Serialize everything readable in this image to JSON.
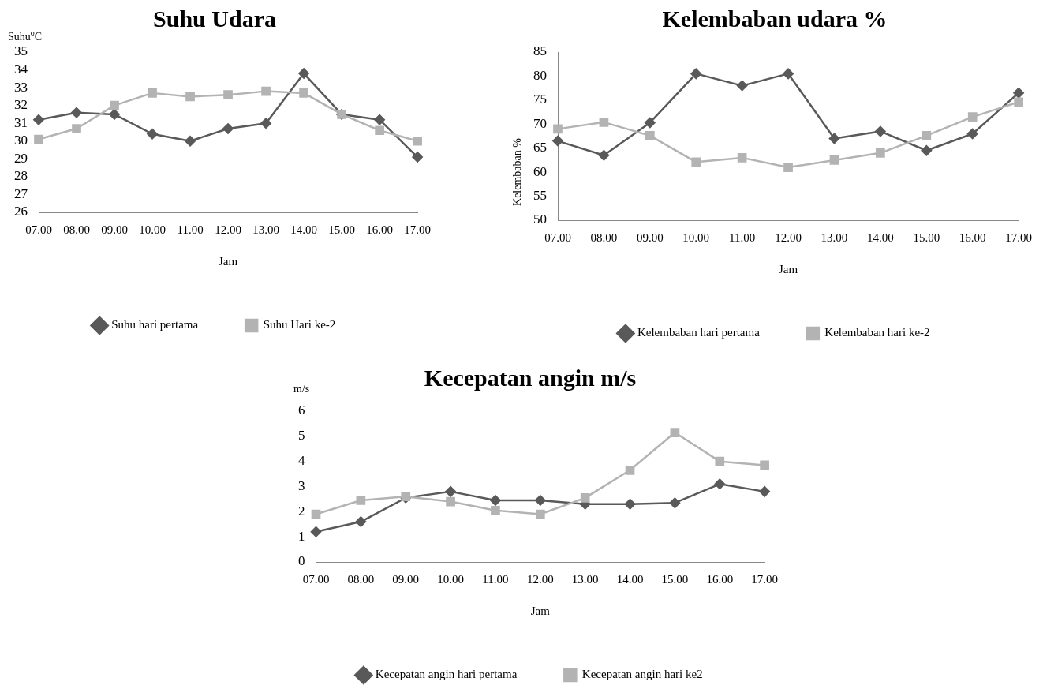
{
  "chart_data": [
    {
      "type": "line",
      "title": "Suhu Udara",
      "xlabel": "Jam",
      "ylabel": "Suhu$^{o}$C",
      "categories": [
        "07.00",
        "08.00",
        "09.00",
        "10.00",
        "11.00",
        "12.00",
        "13.00",
        "14.00",
        "15.00",
        "16.00",
        "17.00"
      ],
      "series": [
        {
          "name": "Suhu hari pertama",
          "color": "#595959",
          "marker": "diamond",
          "values": [
            31.2,
            31.6,
            31.5,
            30.4,
            30.0,
            30.7,
            31.0,
            33.8,
            31.5,
            31.2,
            29.1
          ]
        },
        {
          "name": "Suhu Hari ke-2",
          "color": "#b3b3b3",
          "marker": "square",
          "values": [
            30.1,
            30.7,
            32.0,
            32.7,
            32.5,
            32.6,
            32.8,
            32.7,
            31.5,
            30.6,
            30.0
          ]
        }
      ],
      "ylim": [
        26,
        35
      ],
      "yticks": [
        26,
        27,
        28,
        29,
        30,
        31,
        32,
        33,
        34,
        35
      ],
      "grid": false,
      "legend": "bottom"
    },
    {
      "type": "line",
      "title": "Kelembaban udara %",
      "xlabel": "Jam",
      "ylabel": "Kelembaban %",
      "categories": [
        "07.00",
        "08.00",
        "09.00",
        "10.00",
        "11.00",
        "12.00",
        "13.00",
        "14.00",
        "15.00",
        "16.00",
        "17.00"
      ],
      "series": [
        {
          "name": "Kelembaban hari pertama",
          "color": "#595959",
          "marker": "diamond",
          "values": [
            66.5,
            63.5,
            70.3,
            80.5,
            78,
            80.5,
            67,
            68.5,
            64.5,
            68,
            76.5
          ]
        },
        {
          "name": "Kelembaban hari ke-2",
          "color": "#b3b3b3",
          "marker": "square",
          "values": [
            69,
            70.4,
            67.6,
            62.1,
            63,
            61,
            62.5,
            64,
            67.6,
            71.5,
            74.6
          ]
        }
      ],
      "ylim": [
        50,
        85
      ],
      "yticks": [
        50,
        55,
        60,
        65,
        70,
        75,
        80,
        85
      ],
      "grid": false,
      "legend": "bottom"
    },
    {
      "type": "line",
      "title": "Kecepatan angin m/s",
      "xlabel": "Jam",
      "ylabel": "m/s",
      "categories": [
        "07.00",
        "08.00",
        "09.00",
        "10.00",
        "11.00",
        "12.00",
        "13.00",
        "14.00",
        "15.00",
        "16.00",
        "17.00"
      ],
      "series": [
        {
          "name": "Kecepatan angin hari pertama",
          "color": "#595959",
          "marker": "diamond",
          "values": [
            1.2,
            1.6,
            2.55,
            2.8,
            2.45,
            2.45,
            2.3,
            2.3,
            2.35,
            3.1,
            2.8
          ]
        },
        {
          "name": "Kecepatan angin hari ke2",
          "color": "#b3b3b3",
          "marker": "square",
          "values": [
            1.9,
            2.45,
            2.6,
            2.4,
            2.05,
            1.9,
            2.55,
            3.65,
            5.15,
            4.0,
            3.85
          ]
        }
      ],
      "ylim": [
        0,
        6
      ],
      "yticks": [
        0,
        1,
        2,
        3,
        4,
        5,
        6
      ],
      "grid": false,
      "legend": "bottom"
    }
  ]
}
